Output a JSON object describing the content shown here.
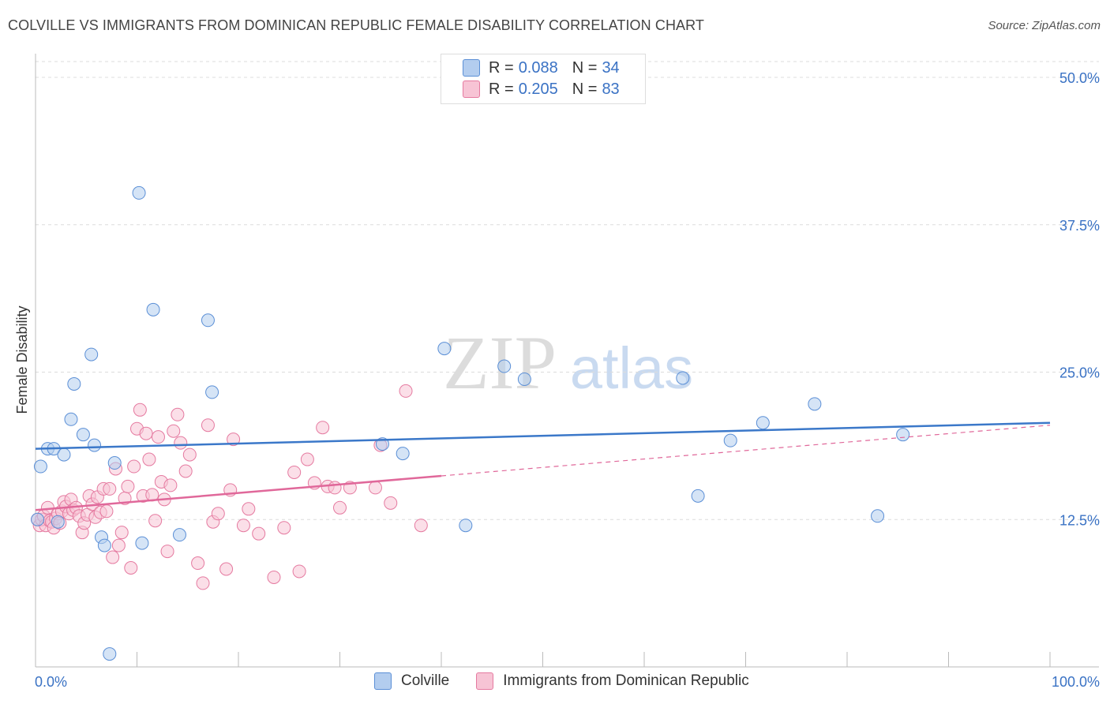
{
  "header": {
    "title": "COLVILLE VS IMMIGRANTS FROM DOMINICAN REPUBLIC FEMALE DISABILITY CORRELATION CHART",
    "source": "Source: ZipAtlas.com"
  },
  "watermark": {
    "zip": "ZIP",
    "atlas": "atlas"
  },
  "legend": {
    "r_label": "R =",
    "n_label": "N =",
    "entries": [
      {
        "r": "0.088",
        "n": "34",
        "color": "#5b8fd6",
        "fill": "#b3cdef"
      },
      {
        "r": "0.205",
        "n": "83",
        "color": "#e57aa0",
        "fill": "#f7c4d5"
      }
    ]
  },
  "chart_data": {
    "type": "scatter",
    "title": "COLVILLE VS IMMIGRANTS FROM DOMINICAN REPUBLIC FEMALE DISABILITY CORRELATION CHART",
    "xlabel": "",
    "ylabel": "Female Disability",
    "xlim": [
      0,
      100
    ],
    "ylim": [
      0,
      52.5
    ],
    "x_tick_labels": [
      "0.0%",
      "100.0%"
    ],
    "y_ticks": [
      12.5,
      25.0,
      37.5,
      50.0
    ],
    "y_tick_labels": [
      "12.5%",
      "25.0%",
      "37.5%",
      "50.0%"
    ],
    "grid": true,
    "series": [
      {
        "name": "Colville",
        "color": "#3b78c9",
        "fill": "#b3cdef",
        "trend": {
          "x": [
            0,
            100
          ],
          "y": [
            18.5,
            20.7
          ],
          "dashed_x": null
        },
        "points": [
          [
            0.5,
            17.0
          ],
          [
            1.2,
            18.5
          ],
          [
            1.8,
            18.5
          ],
          [
            2.8,
            18.0
          ],
          [
            3.5,
            21.0
          ],
          [
            3.8,
            24.0
          ],
          [
            4.7,
            19.7
          ],
          [
            5.5,
            26.5
          ],
          [
            5.8,
            18.8
          ],
          [
            6.5,
            11.0
          ],
          [
            6.8,
            10.3
          ],
          [
            7.3,
            1.1
          ],
          [
            7.8,
            17.3
          ],
          [
            10.2,
            40.2
          ],
          [
            10.5,
            10.5
          ],
          [
            11.6,
            30.3
          ],
          [
            14.2,
            11.2
          ],
          [
            17.0,
            29.4
          ],
          [
            17.4,
            23.3
          ],
          [
            34.2,
            18.9
          ],
          [
            36.2,
            18.1
          ],
          [
            40.3,
            27.0
          ],
          [
            42.4,
            12.0
          ],
          [
            46.2,
            25.5
          ],
          [
            48.2,
            24.4
          ],
          [
            63.8,
            24.5
          ],
          [
            65.3,
            14.5
          ],
          [
            68.5,
            19.2
          ],
          [
            71.7,
            20.7
          ],
          [
            76.8,
            22.3
          ],
          [
            83.0,
            12.8
          ],
          [
            85.5,
            19.7
          ],
          [
            0.2,
            12.5
          ],
          [
            2.2,
            12.3
          ]
        ]
      },
      {
        "name": "Immigrants from Dominican Republic",
        "color": "#e0689a",
        "fill": "#f7c4d5",
        "trend": {
          "x": [
            0,
            40
          ],
          "y": [
            13.3,
            16.2
          ],
          "dashed_x": [
            40,
            100
          ],
          "dashed_y": [
            16.2,
            20.5
          ]
        },
        "points": [
          [
            0.2,
            12.5
          ],
          [
            0.4,
            12.0
          ],
          [
            0.6,
            12.5
          ],
          [
            0.8,
            12.8
          ],
          [
            1.0,
            12.0
          ],
          [
            1.2,
            13.5
          ],
          [
            1.4,
            12.4
          ],
          [
            1.6,
            12.3
          ],
          [
            1.8,
            11.8
          ],
          [
            2.0,
            12.6
          ],
          [
            2.2,
            13.0
          ],
          [
            2.4,
            12.2
          ],
          [
            2.6,
            13.2
          ],
          [
            2.8,
            14.0
          ],
          [
            3.0,
            13.6
          ],
          [
            3.3,
            13.0
          ],
          [
            3.5,
            14.2
          ],
          [
            3.7,
            13.3
          ],
          [
            4.0,
            13.5
          ],
          [
            4.3,
            12.8
          ],
          [
            4.6,
            11.4
          ],
          [
            4.8,
            12.2
          ],
          [
            5.1,
            12.9
          ],
          [
            5.3,
            14.5
          ],
          [
            5.6,
            13.8
          ],
          [
            5.9,
            12.7
          ],
          [
            6.1,
            14.4
          ],
          [
            6.4,
            13.1
          ],
          [
            6.7,
            15.1
          ],
          [
            7.0,
            13.2
          ],
          [
            7.3,
            15.1
          ],
          [
            7.6,
            9.3
          ],
          [
            7.9,
            16.8
          ],
          [
            8.2,
            10.3
          ],
          [
            8.5,
            11.4
          ],
          [
            8.8,
            14.3
          ],
          [
            9.1,
            15.3
          ],
          [
            9.4,
            8.4
          ],
          [
            9.7,
            17.0
          ],
          [
            10.0,
            20.2
          ],
          [
            10.3,
            21.8
          ],
          [
            10.6,
            14.5
          ],
          [
            10.9,
            19.8
          ],
          [
            11.2,
            17.6
          ],
          [
            11.5,
            14.6
          ],
          [
            11.8,
            12.4
          ],
          [
            12.1,
            19.5
          ],
          [
            12.4,
            15.7
          ],
          [
            12.7,
            14.2
          ],
          [
            13.0,
            9.8
          ],
          [
            13.3,
            15.4
          ],
          [
            13.6,
            20.0
          ],
          [
            14.0,
            21.4
          ],
          [
            14.3,
            19.0
          ],
          [
            14.8,
            16.6
          ],
          [
            15.2,
            18.0
          ],
          [
            16.0,
            8.8
          ],
          [
            16.5,
            7.1
          ],
          [
            17.0,
            20.5
          ],
          [
            17.5,
            12.3
          ],
          [
            18.0,
            13.0
          ],
          [
            18.8,
            8.3
          ],
          [
            19.2,
            15.0
          ],
          [
            19.5,
            19.3
          ],
          [
            20.5,
            12.0
          ],
          [
            21.0,
            13.4
          ],
          [
            22.0,
            11.3
          ],
          [
            23.5,
            7.6
          ],
          [
            24.5,
            11.8
          ],
          [
            25.5,
            16.5
          ],
          [
            26.0,
            8.1
          ],
          [
            26.8,
            17.6
          ],
          [
            27.5,
            15.6
          ],
          [
            28.3,
            20.3
          ],
          [
            28.8,
            15.3
          ],
          [
            29.5,
            15.2
          ],
          [
            30.0,
            13.5
          ],
          [
            31.0,
            15.2
          ],
          [
            33.5,
            15.2
          ],
          [
            34.0,
            18.8
          ],
          [
            35.0,
            13.9
          ],
          [
            36.5,
            23.4
          ],
          [
            38.0,
            12.0
          ]
        ]
      }
    ]
  },
  "bottom_legend": [
    {
      "label": "Colville",
      "fill": "#b3cdef",
      "stroke": "#5b8fd6"
    },
    {
      "label": "Immigrants from Dominican Republic",
      "fill": "#f7c4d5",
      "stroke": "#e57aa0"
    }
  ]
}
